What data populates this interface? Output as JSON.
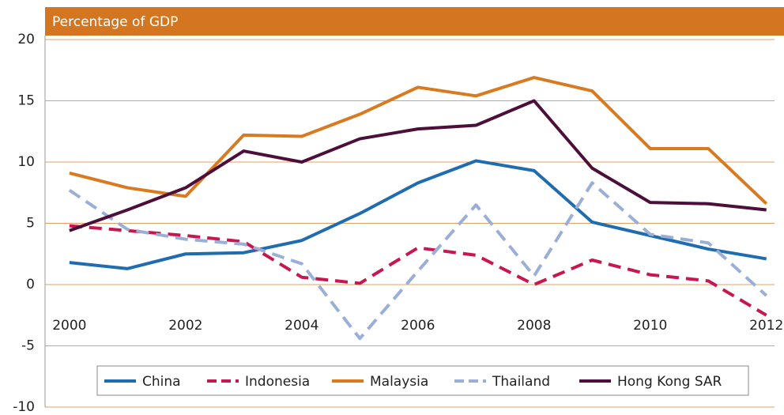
{
  "chart_data": {
    "type": "line",
    "ylabel": "Percentage of GDP",
    "x": [
      2000,
      2001,
      2002,
      2003,
      2004,
      2005,
      2006,
      2007,
      2008,
      2009,
      2010,
      2011,
      2012
    ],
    "xlim": [
      1999.58,
      2012.14
    ],
    "xticks": [
      2000,
      2002,
      2004,
      2006,
      2008,
      2010,
      2012
    ],
    "ylim": [
      -10,
      20
    ],
    "yticks": [
      -10,
      -5,
      0,
      5,
      10,
      15,
      20
    ],
    "grid": true,
    "legend": "bottom",
    "series": [
      {
        "name": "China",
        "color": "#1f6cb0",
        "dashed": false,
        "values": [
          1.8,
          1.3,
          2.5,
          2.6,
          3.6,
          5.8,
          8.3,
          10.1,
          9.3,
          5.1,
          4.0,
          2.9,
          2.1
        ]
      },
      {
        "name": "Indonesia",
        "color": "#c8174f",
        "dashed": true,
        "values": [
          4.8,
          4.4,
          4.0,
          3.5,
          0.6,
          0.1,
          3.0,
          2.4,
          0.0,
          2.0,
          0.8,
          0.3,
          -2.5
        ]
      },
      {
        "name": "Malaysia",
        "color": "#d97a20",
        "dashed": false,
        "values": [
          9.1,
          7.9,
          7.2,
          12.2,
          12.1,
          13.9,
          16.1,
          15.4,
          16.9,
          15.8,
          11.1,
          11.1,
          6.6
        ]
      },
      {
        "name": "Thailand",
        "color": "#9aafd8",
        "dashed": true,
        "values": [
          7.7,
          4.5,
          3.7,
          3.3,
          1.7,
          -4.4,
          1.1,
          6.5,
          0.7,
          8.3,
          4.1,
          3.4,
          -0.9
        ]
      },
      {
        "name": "Hong Kong SAR",
        "color": "#4b0f3a",
        "dashed": false,
        "values": [
          4.4,
          6.1,
          7.9,
          10.9,
          10.0,
          11.9,
          12.7,
          13.0,
          15.0,
          9.5,
          6.7,
          6.6,
          6.1
        ]
      }
    ]
  }
}
